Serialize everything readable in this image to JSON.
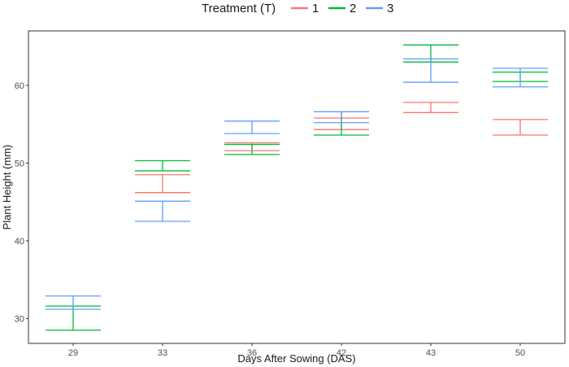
{
  "chart_data": {
    "type": "errorbar",
    "xlabel": "Days After Sowing (DAS)",
    "ylabel": "Plant Height (mm)",
    "categories": [
      "29",
      "33",
      "36",
      "42",
      "43",
      "50"
    ],
    "ylim": [
      26.8,
      67.0
    ],
    "yticks": [
      30,
      40,
      50,
      60
    ],
    "grid": false,
    "legend": {
      "title": "Treatment (T)",
      "position": "top"
    },
    "series": [
      {
        "name": "1",
        "color": "#F8766D",
        "intervals": [
          null,
          [
            46.2,
            48.5
          ],
          [
            51.6,
            52.6
          ],
          [
            54.3,
            55.8
          ],
          [
            56.5,
            57.8
          ],
          [
            53.6,
            55.6
          ]
        ]
      },
      {
        "name": "2",
        "color": "#00BA38",
        "intervals": [
          [
            28.5,
            31.6
          ],
          [
            49.0,
            50.3
          ],
          [
            51.1,
            52.4
          ],
          [
            53.6,
            56.6
          ],
          [
            63.0,
            65.2
          ],
          [
            60.5,
            61.7
          ]
        ]
      },
      {
        "name": "3",
        "color": "#619CFF",
        "intervals": [
          [
            31.2,
            32.9
          ],
          [
            42.5,
            45.1
          ],
          [
            53.8,
            55.4
          ],
          [
            55.2,
            56.6
          ],
          [
            60.4,
            63.4
          ],
          [
            59.8,
            62.2
          ]
        ]
      }
    ]
  }
}
